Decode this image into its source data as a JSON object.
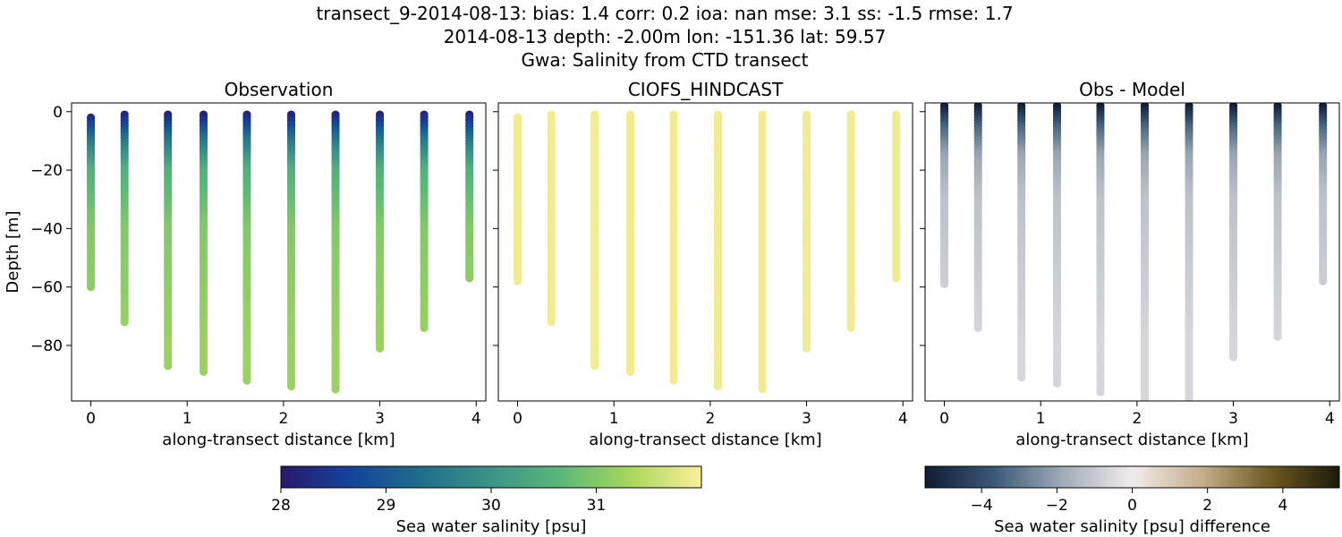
{
  "figure": {
    "title_line1": "transect_9-2014-08-13: bias: 1.4  corr: 0.2  ioa: nan  mse: 3.1  ss: -1.5  rmse: 1.7",
    "title_line2": "2014-08-13 depth: -2.00m lon: -151.36 lat: 59.57",
    "title_line3": "Gwa: Salinity from CTD transect"
  },
  "chart_data": [
    {
      "type": "scatter",
      "title": "Observation",
      "xlabel": "along-transect distance [km]",
      "ylabel": "Depth [m]",
      "xlim": [
        -0.2,
        4.1
      ],
      "ylim": [
        -99,
        3
      ],
      "xticks": [
        "0",
        "1",
        "2",
        "3",
        "4"
      ],
      "yticks": [
        "0",
        "−20",
        "−40",
        "−60",
        "−80"
      ],
      "colormap": "haline",
      "casts": [
        {
          "x": 0.0,
          "top_depth": -2,
          "bottom_depth": -60
        },
        {
          "x": 0.35,
          "top_depth": -1,
          "bottom_depth": -72
        },
        {
          "x": 0.8,
          "top_depth": -1,
          "bottom_depth": -87
        },
        {
          "x": 1.17,
          "top_depth": -1,
          "bottom_depth": -89
        },
        {
          "x": 1.62,
          "top_depth": -1,
          "bottom_depth": -92
        },
        {
          "x": 2.08,
          "top_depth": -1,
          "bottom_depth": -94
        },
        {
          "x": 2.54,
          "top_depth": -1,
          "bottom_depth": -95
        },
        {
          "x": 3.0,
          "top_depth": -1,
          "bottom_depth": -81
        },
        {
          "x": 3.46,
          "top_depth": -1,
          "bottom_depth": -74
        },
        {
          "x": 3.93,
          "top_depth": -1,
          "bottom_depth": -57
        }
      ],
      "salinity_profile": {
        "surface": 28.0,
        "depth_10m": 29.5,
        "depth_20m": 30.5,
        "depth_40m": 31.0,
        "deep": 31.2
      }
    },
    {
      "type": "scatter",
      "title": "CIOFS_HINDCAST",
      "xlabel": "along-transect distance [km]",
      "xlim": [
        -0.2,
        4.1
      ],
      "ylim": [
        -99,
        3
      ],
      "xticks": [
        "0",
        "1",
        "2",
        "3",
        "4"
      ],
      "colormap": "haline",
      "casts": [
        {
          "x": 0.0,
          "top_depth": -2,
          "bottom_depth": -58
        },
        {
          "x": 0.35,
          "top_depth": -1,
          "bottom_depth": -72
        },
        {
          "x": 0.8,
          "top_depth": -1,
          "bottom_depth": -87
        },
        {
          "x": 1.17,
          "top_depth": -1,
          "bottom_depth": -89
        },
        {
          "x": 1.62,
          "top_depth": -1,
          "bottom_depth": -92
        },
        {
          "x": 2.08,
          "top_depth": -1,
          "bottom_depth": -94
        },
        {
          "x": 2.54,
          "top_depth": -1,
          "bottom_depth": -95
        },
        {
          "x": 3.0,
          "top_depth": -1,
          "bottom_depth": -81
        },
        {
          "x": 3.46,
          "top_depth": -1,
          "bottom_depth": -74
        },
        {
          "x": 3.93,
          "top_depth": -1,
          "bottom_depth": -57
        }
      ],
      "salinity_value": 31.9
    },
    {
      "type": "scatter",
      "title": "Obs - Model",
      "xlabel": "along-transect distance [km]",
      "xlim": [
        -0.2,
        4.1
      ],
      "ylim": [
        -99,
        3
      ],
      "xticks": [
        "0",
        "1",
        "2",
        "3",
        "4"
      ],
      "colormap": "diff",
      "casts": [
        {
          "x": 0.0,
          "top_depth": 2,
          "bottom_depth": -59
        },
        {
          "x": 0.35,
          "top_depth": 2,
          "bottom_depth": -74
        },
        {
          "x": 0.8,
          "top_depth": 2,
          "bottom_depth": -91
        },
        {
          "x": 1.17,
          "top_depth": 2,
          "bottom_depth": -93
        },
        {
          "x": 1.62,
          "top_depth": 2,
          "bottom_depth": -96
        },
        {
          "x": 2.08,
          "top_depth": 2,
          "bottom_depth": -99
        },
        {
          "x": 2.54,
          "top_depth": 2,
          "bottom_depth": -99
        },
        {
          "x": 3.0,
          "top_depth": 2,
          "bottom_depth": -84
        },
        {
          "x": 3.46,
          "top_depth": 2,
          "bottom_depth": -77
        },
        {
          "x": 3.93,
          "top_depth": 2,
          "bottom_depth": -58
        }
      ],
      "difference_profile": {
        "surface": -5.5,
        "depth_5m": -3.5,
        "depth_15m": -2.0,
        "depth_30m": -1.2,
        "deep": -0.6
      }
    }
  ],
  "colorbars": [
    {
      "label": "Sea water salinity [psu]",
      "range": [
        28,
        32
      ],
      "ticks": [
        "28",
        "29",
        "30",
        "31"
      ],
      "tick_values": [
        28,
        29,
        30,
        31
      ]
    },
    {
      "label": "Sea water salinity [psu] difference",
      "range": [
        -5.5,
        5.5
      ],
      "ticks": [
        "−4",
        "−2",
        "0",
        "2",
        "4"
      ],
      "tick_values": [
        -4,
        -2,
        0,
        2,
        4
      ]
    }
  ],
  "colors": {
    "haline": [
      "#2a186c",
      "#14439c",
      "#206e8b",
      "#3c9387",
      "#5ab978",
      "#aad85c",
      "#fdef9a"
    ],
    "diff": [
      "#0f1b32",
      "#3a5a78",
      "#a0acb8",
      "#f1ecec",
      "#c6ae8a",
      "#6e5a22",
      "#1c1a0a"
    ]
  }
}
